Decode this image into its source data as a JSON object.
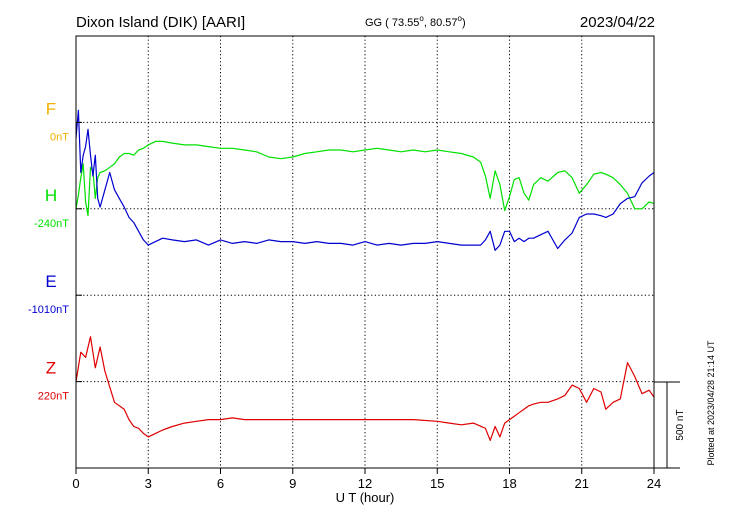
{
  "header": {
    "station": "Dixon Island (DIK)  [AARI]",
    "coords": "GG ( 73.55",
    "coords_lat_deg": "o",
    "coords_mid": ",  80.57",
    "coords_lon_deg": "o",
    "coords_end": ")",
    "date": "2023/04/22"
  },
  "side_note": "Plotted at 2023/04/28 21:14 UT",
  "colors": {
    "F": "#f0b000",
    "H": "#00e000",
    "E": "#0000d0",
    "Z": "#e00000",
    "axis": "#000000"
  },
  "chart_data": {
    "type": "line",
    "title": "Dixon Island (DIK)  [AARI]",
    "xlabel": "U T (hour)",
    "xlim": [
      0,
      24
    ],
    "xticks": [
      0,
      3,
      6,
      9,
      12,
      15,
      18,
      21,
      24
    ],
    "grid": true,
    "scale_bar": {
      "label": "500 nT",
      "value_nT": 500
    },
    "series": [
      {
        "name": "F",
        "baseline_label": "0nT",
        "baseline_nT": 0,
        "x": [],
        "values": []
      },
      {
        "name": "H",
        "baseline_label": "-240nT",
        "baseline_nT": -240,
        "x": [
          0,
          0.1,
          0.2,
          0.3,
          0.4,
          0.5,
          0.6,
          0.7,
          0.8,
          0.9,
          1.0,
          1.2,
          1.4,
          1.6,
          1.8,
          2.0,
          2.2,
          2.4,
          2.6,
          2.8,
          3.0,
          3.3,
          3.6,
          4.0,
          4.5,
          5.0,
          5.5,
          6.0,
          6.5,
          7.0,
          7.5,
          8.0,
          8.5,
          9.0,
          9.5,
          10.0,
          10.5,
          11.0,
          11.5,
          12.0,
          12.5,
          13.0,
          13.5,
          14.0,
          14.5,
          15.0,
          15.5,
          16.0,
          16.5,
          16.8,
          17.0,
          17.2,
          17.4,
          17.6,
          17.8,
          18.0,
          18.2,
          18.4,
          18.6,
          18.8,
          19.0,
          19.3,
          19.6,
          20.0,
          20.3,
          20.6,
          20.9,
          21.2,
          21.5,
          21.8,
          22.0,
          22.3,
          22.6,
          22.9,
          23.2,
          23.5,
          23.8,
          24.0
        ],
        "values": [
          -240,
          -160,
          -60,
          20,
          -200,
          -280,
          0,
          -20,
          -180,
          -60,
          -30,
          -20,
          0,
          20,
          60,
          80,
          80,
          70,
          100,
          110,
          130,
          150,
          150,
          140,
          130,
          130,
          120,
          110,
          110,
          100,
          90,
          60,
          50,
          60,
          80,
          90,
          100,
          100,
          90,
          100,
          110,
          100,
          90,
          100,
          90,
          100,
          90,
          80,
          60,
          30,
          -50,
          -180,
          -20,
          -100,
          -250,
          -170,
          -70,
          -60,
          -150,
          -190,
          -100,
          -60,
          -80,
          -30,
          -20,
          -60,
          -150,
          -100,
          -40,
          -30,
          -40,
          -60,
          -100,
          -150,
          -240,
          -240,
          -200,
          -210
        ]
      },
      {
        "name": "E",
        "baseline_label": "-1010nT",
        "baseline_nT": -1010,
        "x": [
          0,
          0.1,
          0.2,
          0.3,
          0.4,
          0.5,
          0.6,
          0.7,
          0.8,
          0.9,
          1.0,
          1.2,
          1.4,
          1.6,
          1.8,
          2.0,
          2.2,
          2.4,
          2.6,
          2.8,
          3.0,
          3.3,
          3.6,
          4.0,
          4.5,
          5.0,
          5.5,
          6.0,
          6.5,
          7.0,
          7.5,
          8.0,
          8.5,
          9.0,
          9.5,
          10.0,
          10.5,
          11.0,
          11.5,
          12.0,
          12.5,
          13.0,
          13.5,
          14.0,
          14.5,
          15.0,
          15.5,
          16.0,
          16.5,
          16.8,
          17.0,
          17.2,
          17.4,
          17.6,
          17.8,
          18.0,
          18.2,
          18.4,
          18.6,
          18.8,
          19.0,
          19.3,
          19.6,
          20.0,
          20.3,
          20.6,
          20.9,
          21.2,
          21.5,
          21.8,
          22.0,
          22.3,
          22.6,
          22.9,
          23.2,
          23.5,
          23.8,
          24.0
        ],
        "values": [
          -100,
          60,
          -300,
          -200,
          -150,
          -50,
          -200,
          -320,
          -200,
          -450,
          -500,
          -400,
          -300,
          -400,
          -450,
          -500,
          -560,
          -590,
          -640,
          -690,
          -720,
          -700,
          -680,
          -690,
          -700,
          -690,
          -720,
          -690,
          -710,
          -700,
          -710,
          -690,
          -700,
          -700,
          -710,
          -700,
          -710,
          -710,
          -720,
          -700,
          -720,
          -710,
          -720,
          -710,
          -710,
          -700,
          -710,
          -720,
          -720,
          -720,
          -690,
          -640,
          -750,
          -720,
          -640,
          -640,
          -700,
          -680,
          -700,
          -680,
          -680,
          -660,
          -640,
          -740,
          -690,
          -650,
          -560,
          -540,
          -540,
          -550,
          -560,
          -540,
          -480,
          -450,
          -440,
          -360,
          -320,
          -300
        ]
      },
      {
        "name": "Z",
        "baseline_label": "220nT",
        "baseline_nT": 220,
        "x": [
          0,
          0.2,
          0.4,
          0.6,
          0.8,
          1.0,
          1.2,
          1.4,
          1.6,
          1.8,
          2.0,
          2.2,
          2.4,
          2.6,
          2.8,
          3.0,
          3.3,
          3.6,
          4.0,
          4.5,
          5.0,
          5.5,
          6.0,
          6.5,
          7.0,
          7.5,
          8.0,
          9.0,
          10.0,
          11.0,
          12.0,
          13.0,
          14.0,
          15.0,
          15.5,
          16.0,
          16.5,
          17.0,
          17.2,
          17.4,
          17.6,
          17.8,
          18.0,
          18.2,
          18.4,
          18.6,
          18.8,
          19.0,
          19.3,
          19.6,
          20.0,
          20.3,
          20.6,
          20.9,
          21.2,
          21.5,
          21.8,
          22.0,
          22.3,
          22.6,
          22.9,
          23.2,
          23.5,
          23.8,
          24.0
        ],
        "values": [
          220,
          390,
          360,
          480,
          300,
          420,
          280,
          190,
          100,
          80,
          60,
          0,
          -40,
          -50,
          -80,
          -100,
          -80,
          -60,
          -40,
          -20,
          -10,
          0,
          0,
          10,
          0,
          0,
          0,
          0,
          0,
          0,
          0,
          0,
          0,
          -10,
          -20,
          -30,
          -20,
          -50,
          -120,
          -40,
          -100,
          -20,
          0,
          20,
          40,
          60,
          80,
          90,
          100,
          100,
          120,
          140,
          200,
          180,
          100,
          180,
          160,
          60,
          100,
          120,
          330,
          250,
          150,
          170,
          130
        ]
      }
    ]
  }
}
